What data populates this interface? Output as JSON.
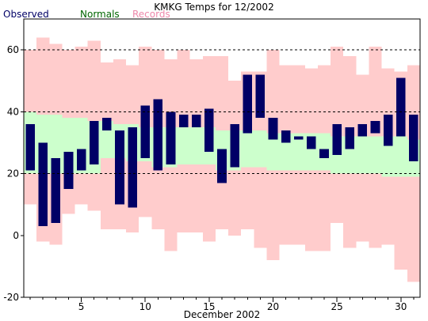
{
  "chart_data": {
    "type": "bar",
    "title": "KMKG Temps for 12/2002",
    "xlabel": "December 2002",
    "ylabel": "",
    "ylim": [
      -20,
      70
    ],
    "xlim": [
      0.5,
      31.5
    ],
    "grid": "horizontal dashed at 20, 40, 60",
    "y_ticks": [
      -20,
      0,
      20,
      40,
      60
    ],
    "x_ticks": [
      5,
      10,
      15,
      20,
      25,
      30
    ],
    "days": [
      1,
      2,
      3,
      4,
      5,
      6,
      7,
      8,
      9,
      10,
      11,
      12,
      13,
      14,
      15,
      16,
      17,
      18,
      19,
      20,
      21,
      22,
      23,
      24,
      25,
      26,
      27,
      28,
      29,
      30,
      31
    ],
    "legend": [
      {
        "name": "Observed",
        "color": "#000066"
      },
      {
        "name": "Normals",
        "color": "#006600"
      },
      {
        "name": "Records",
        "color": "#ee88aa"
      }
    ],
    "series": [
      {
        "name": "Records",
        "fill": "#ffcccc",
        "low": [
          10,
          -2,
          -3,
          7,
          10,
          8,
          2,
          2,
          1,
          6,
          2,
          -5,
          1,
          1,
          -2,
          2,
          0,
          2,
          -4,
          -8,
          -3,
          -3,
          -5,
          -5,
          4,
          -4,
          -2,
          -4,
          -3,
          -11,
          -15
        ],
        "high": [
          60,
          64,
          62,
          60,
          61,
          63,
          56,
          57,
          55,
          61,
          60,
          57,
          60,
          57,
          58,
          58,
          50,
          53,
          53,
          60,
          55,
          55,
          54,
          55,
          61,
          58,
          52,
          61,
          54,
          53,
          55
        ]
      },
      {
        "name": "Normals",
        "fill": "#ccffcc",
        "low": [
          20,
          20,
          20,
          20,
          20,
          20,
          25,
          25,
          24,
          24,
          22,
          22,
          23,
          23,
          23,
          21,
          21,
          22,
          22,
          21,
          21,
          21,
          21,
          21,
          20,
          20,
          20,
          20,
          19,
          19,
          19
        ],
        "high": [
          40,
          39,
          39,
          38,
          38,
          37,
          37,
          36,
          36,
          35,
          35,
          35,
          35,
          35,
          35,
          34,
          34,
          34,
          34,
          33,
          33,
          33,
          33,
          33,
          32,
          32,
          32,
          32,
          32,
          32,
          31
        ]
      },
      {
        "name": "Observed",
        "fill": "#000066",
        "low": [
          21,
          3,
          4,
          15,
          21,
          23,
          34,
          10,
          9,
          25,
          21,
          23,
          35,
          35,
          27,
          17,
          22,
          33,
          38,
          31,
          30,
          31,
          28,
          25,
          26,
          28,
          32,
          33,
          29,
          32,
          24
        ],
        "high": [
          36,
          30,
          25,
          27,
          28,
          37,
          38,
          34,
          35,
          42,
          44,
          40,
          39,
          39,
          41,
          28,
          36,
          52,
          52,
          38,
          34,
          32,
          32,
          28,
          36,
          35,
          36,
          37,
          39,
          51,
          39
        ]
      }
    ]
  }
}
